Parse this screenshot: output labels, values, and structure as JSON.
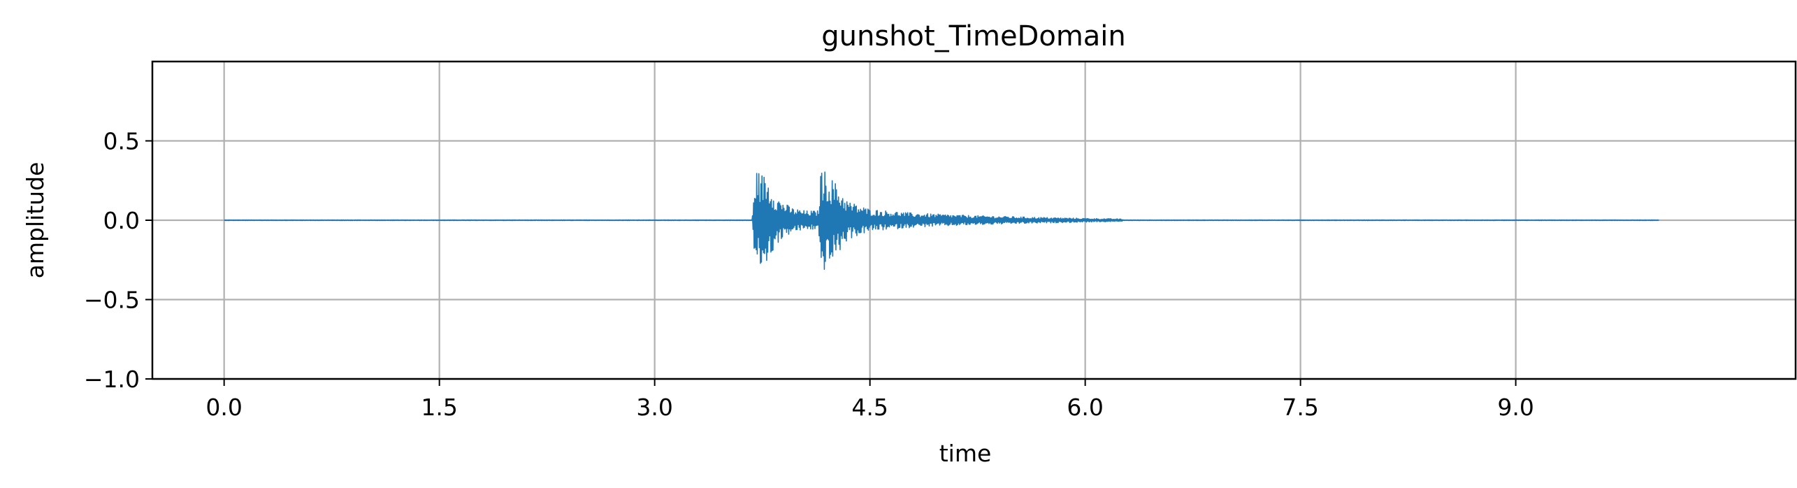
{
  "chart_data": {
    "type": "line",
    "title": "gunshot_TimeDomain",
    "xlabel": "time",
    "ylabel": "amplitude",
    "xlim": [
      -0.5,
      10.95
    ],
    "ylim": [
      -1.0,
      1.0
    ],
    "xticks": [
      0.0,
      1.5,
      3.0,
      4.5,
      6.0,
      7.5,
      9.0
    ],
    "xtick_labels": [
      "0.0",
      "1.5",
      "3.0",
      "4.5",
      "6.0",
      "7.5",
      "9.0"
    ],
    "yticks": [
      -1.0,
      -0.5,
      0.0,
      0.5
    ],
    "ytick_labels": [
      "−1.0",
      "−0.5",
      "0.0",
      "0.5"
    ],
    "grid": true,
    "series": [
      {
        "color": "#1f77b4",
        "x_start": 0.0,
        "x_end": 10.0,
        "envelope": [
          {
            "x": 0.0,
            "y": 0.002
          },
          {
            "x": 3.68,
            "y": 0.002
          },
          {
            "x": 3.7,
            "y": 0.32
          },
          {
            "x": 3.78,
            "y": 0.28
          },
          {
            "x": 3.85,
            "y": 0.15
          },
          {
            "x": 3.95,
            "y": 0.08
          },
          {
            "x": 4.05,
            "y": 0.06
          },
          {
            "x": 4.14,
            "y": 0.06
          },
          {
            "x": 4.16,
            "y": 0.34
          },
          {
            "x": 4.25,
            "y": 0.25
          },
          {
            "x": 4.35,
            "y": 0.12
          },
          {
            "x": 4.5,
            "y": 0.07
          },
          {
            "x": 4.8,
            "y": 0.045
          },
          {
            "x": 5.2,
            "y": 0.03
          },
          {
            "x": 5.6,
            "y": 0.02
          },
          {
            "x": 6.0,
            "y": 0.012
          },
          {
            "x": 6.25,
            "y": 0.008
          },
          {
            "x": 6.27,
            "y": 0.002
          },
          {
            "x": 10.0,
            "y": 0.002
          }
        ]
      }
    ]
  }
}
